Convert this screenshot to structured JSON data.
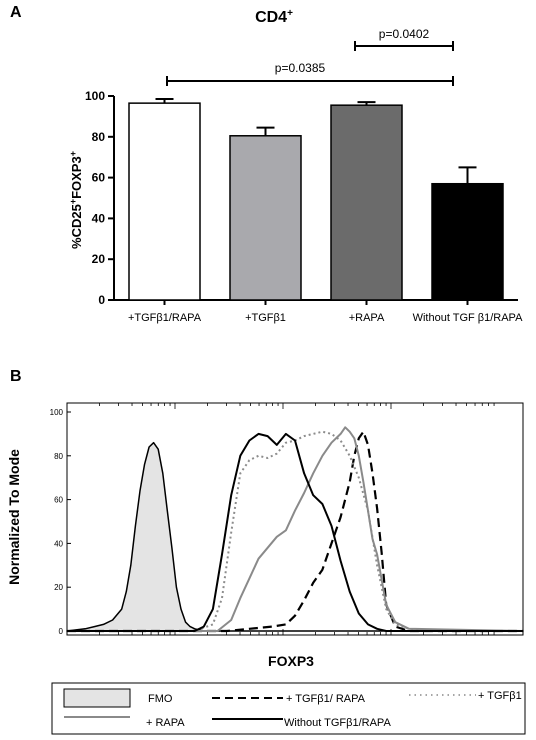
{
  "panel_a": {
    "panel_label": "A",
    "title_main": "CD4",
    "title_sup": "+",
    "ylabel_parts": [
      "%CD25",
      "+",
      "FOXP3",
      "+"
    ],
    "p_values": [
      {
        "label": "p=0.0402",
        "from": "+RAPA",
        "to": "Without TGF β1/RAPA"
      },
      {
        "label": "p=0.0385",
        "from": "+TGFβ1/RAPA",
        "to": "Without TGF β1/RAPA"
      }
    ]
  },
  "panel_b": {
    "panel_label": "B",
    "xlabel": "FOXP3",
    "ylabel": "Normalized To Mode",
    "legend": {
      "fmo": "FMO",
      "tgf_rapa": "+ TGFβ1/ RAPA",
      "tgf": "+ TGFβ1",
      "rapa": "+ RAPA",
      "without": "Without TGFβ1/RAPA"
    }
  },
  "chart_data": [
    {
      "type": "bar",
      "title": "CD4+",
      "ylabel": "%CD25+FOXP3+",
      "xlabel": "",
      "categories": [
        "+TGFβ1/RAPA",
        "+TGFβ1",
        "+RAPA",
        "Without TGF β1/RAPA"
      ],
      "values": [
        96.5,
        80.5,
        95.5,
        57
      ],
      "errors": [
        2.0,
        4.0,
        1.5,
        8.0
      ],
      "colors": [
        "#ffffff",
        "#a9a9ad",
        "#6b6b6b",
        "#000000"
      ],
      "ylim": [
        0,
        100
      ],
      "yticks": [
        0,
        20,
        40,
        60,
        80,
        100
      ],
      "grid": false
    },
    {
      "type": "line",
      "title": "",
      "xlabel": "FOXP3",
      "ylabel": "Normalized To Mode",
      "ylim": [
        0,
        100
      ],
      "yticks": [
        0,
        20,
        40,
        60,
        80,
        100
      ],
      "xlim": [
        0,
        100
      ],
      "grid": false,
      "legend_position": "bottom",
      "series": [
        {
          "name": "FMO",
          "style": "filled-gray",
          "x": [
            0,
            4,
            6,
            8,
            10,
            12,
            13,
            14,
            15,
            16,
            17,
            18,
            19,
            20,
            21,
            22,
            23,
            24,
            25,
            26,
            27,
            28,
            30,
            35,
            100
          ],
          "y": [
            0,
            1,
            2,
            3,
            5,
            10,
            18,
            30,
            48,
            64,
            76,
            84,
            86,
            83,
            72,
            55,
            38,
            20,
            10,
            4,
            2,
            1,
            0,
            0,
            0
          ]
        },
        {
          "name": "+ TGFβ1/ RAPA",
          "style": "dashed-black",
          "x": [
            0,
            30,
            35,
            40,
            45,
            48,
            50,
            52,
            54,
            56,
            58,
            60,
            62,
            63,
            64,
            65,
            66,
            67,
            68,
            69,
            70,
            72,
            75,
            100
          ],
          "y": [
            0,
            0,
            0,
            1,
            2,
            3,
            7,
            14,
            22,
            28,
            40,
            52,
            68,
            80,
            88,
            91,
            85,
            72,
            56,
            36,
            12,
            2,
            0,
            0
          ]
        },
        {
          "name": "+ TGFβ1",
          "style": "dotted-gray",
          "x": [
            0,
            28,
            32,
            34,
            36,
            38,
            40,
            42,
            44,
            46,
            48,
            50,
            52,
            54,
            56,
            58,
            60,
            62,
            64,
            66,
            68,
            70,
            72,
            75,
            80,
            100
          ],
          "y": [
            0,
            0,
            3,
            15,
            45,
            72,
            78,
            80,
            79,
            81,
            86,
            87,
            89,
            90,
            91,
            90,
            87,
            80,
            70,
            55,
            30,
            10,
            3,
            1,
            0,
            0
          ]
        },
        {
          "name": "+ RAPA",
          "style": "solid-gray",
          "x": [
            0,
            33,
            36,
            38,
            40,
            42,
            44,
            46,
            48,
            50,
            52,
            54,
            56,
            58,
            60,
            61,
            62,
            63,
            64,
            65,
            66,
            67,
            68,
            70,
            72,
            75,
            100
          ],
          "y": [
            0,
            0,
            5,
            15,
            24,
            33,
            38,
            43,
            46,
            55,
            63,
            72,
            80,
            86,
            90,
            93,
            91,
            88,
            80,
            68,
            55,
            42,
            35,
            12,
            4,
            1,
            0
          ]
        },
        {
          "name": "Without TGFβ1/RAPA",
          "style": "solid-black",
          "x": [
            0,
            28,
            30,
            32,
            34,
            36,
            38,
            40,
            42,
            44,
            46,
            48,
            50,
            52,
            54,
            56,
            58,
            60,
            62,
            64,
            66,
            68,
            70,
            100
          ],
          "y": [
            0,
            0,
            2,
            10,
            35,
            62,
            80,
            87,
            90,
            89,
            85,
            90,
            87,
            72,
            62,
            58,
            48,
            32,
            18,
            8,
            3,
            1,
            0,
            0
          ]
        }
      ]
    }
  ]
}
